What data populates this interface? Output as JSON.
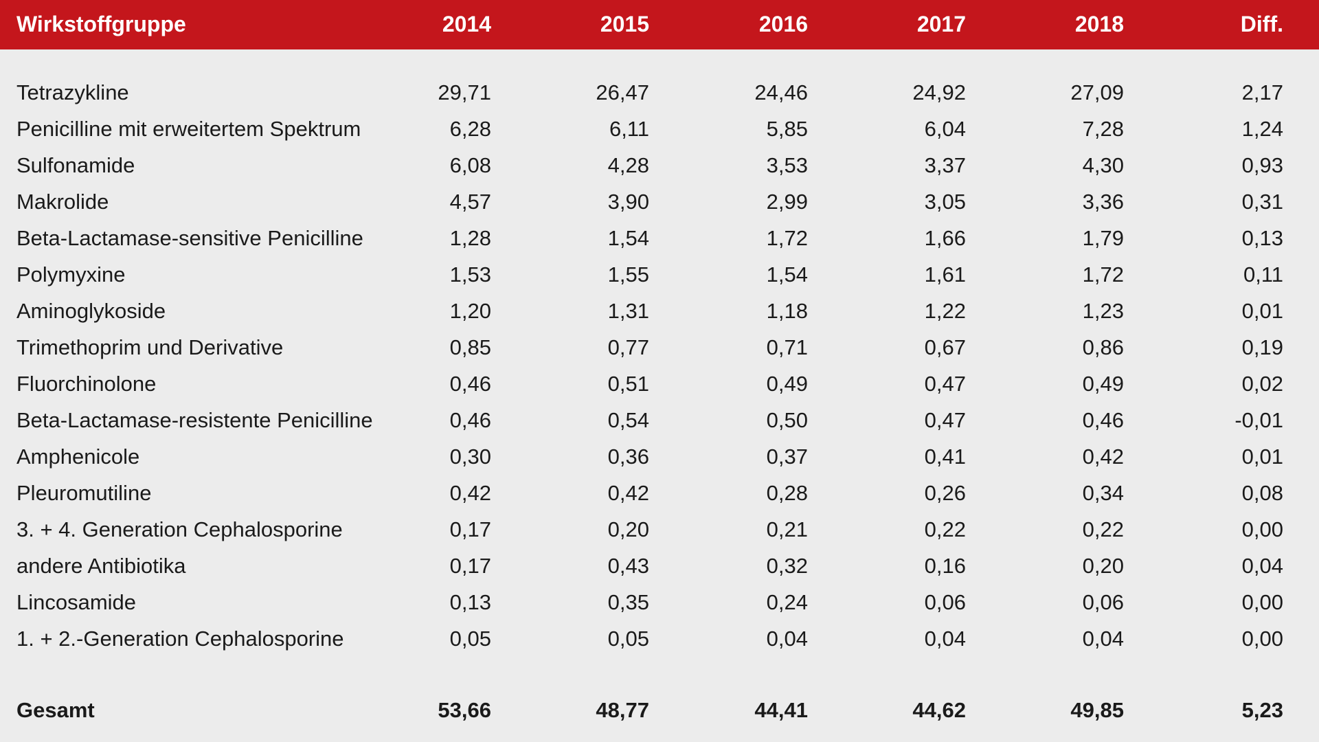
{
  "colors": {
    "header_bg": "#c4161c",
    "header_text": "#ffffff",
    "page_bg": "#ececec",
    "text": "#1a1a1a"
  },
  "header": {
    "group": "Wirkstoffgruppe",
    "y2014": "2014",
    "y2015": "2015",
    "y2016": "2016",
    "y2017": "2017",
    "y2018": "2018",
    "diff": "Diff."
  },
  "rows": [
    {
      "name": "Tetrazykline",
      "v2014": "29,71",
      "v2015": "26,47",
      "v2016": "24,46",
      "v2017": "24,92",
      "v2018": "27,09",
      "diff": "2,17"
    },
    {
      "name": "Penicilline mit erweitertem Spektrum",
      "v2014": "6,28",
      "v2015": "6,11",
      "v2016": "5,85",
      "v2017": "6,04",
      "v2018": "7,28",
      "diff": "1,24"
    },
    {
      "name": "Sulfonamide",
      "v2014": "6,08",
      "v2015": "4,28",
      "v2016": "3,53",
      "v2017": "3,37",
      "v2018": "4,30",
      "diff": "0,93"
    },
    {
      "name": "Makrolide",
      "v2014": "4,57",
      "v2015": "3,90",
      "v2016": "2,99",
      "v2017": "3,05",
      "v2018": "3,36",
      "diff": "0,31"
    },
    {
      "name": "Beta-Lactamase-sensitive Penicilline",
      "v2014": "1,28",
      "v2015": "1,54",
      "v2016": "1,72",
      "v2017": "1,66",
      "v2018": "1,79",
      "diff": "0,13"
    },
    {
      "name": "Polymyxine",
      "v2014": "1,53",
      "v2015": "1,55",
      "v2016": "1,54",
      "v2017": "1,61",
      "v2018": "1,72",
      "diff": "0,11"
    },
    {
      "name": "Aminoglykoside",
      "v2014": "1,20",
      "v2015": "1,31",
      "v2016": "1,18",
      "v2017": "1,22",
      "v2018": "1,23",
      "diff": "0,01"
    },
    {
      "name": "Trimethoprim und Derivative",
      "v2014": "0,85",
      "v2015": "0,77",
      "v2016": "0,71",
      "v2017": "0,67",
      "v2018": "0,86",
      "diff": "0,19"
    },
    {
      "name": "Fluorchinolone",
      "v2014": "0,46",
      "v2015": "0,51",
      "v2016": "0,49",
      "v2017": "0,47",
      "v2018": "0,49",
      "diff": "0,02"
    },
    {
      "name": "Beta-Lactamase-resistente Penicilline",
      "v2014": "0,46",
      "v2015": "0,54",
      "v2016": "0,50",
      "v2017": "0,47",
      "v2018": "0,46",
      "diff": "-0,01"
    },
    {
      "name": "Amphenicole",
      "v2014": "0,30",
      "v2015": "0,36",
      "v2016": "0,37",
      "v2017": "0,41",
      "v2018": "0,42",
      "diff": "0,01"
    },
    {
      "name": "Pleuromutiline",
      "v2014": "0,42",
      "v2015": "0,42",
      "v2016": "0,28",
      "v2017": "0,26",
      "v2018": "0,34",
      "diff": "0,08"
    },
    {
      "name": "3. + 4. Generation Cephalosporine",
      "v2014": "0,17",
      "v2015": "0,20",
      "v2016": "0,21",
      "v2017": "0,22",
      "v2018": "0,22",
      "diff": "0,00"
    },
    {
      "name": "andere Antibiotika",
      "v2014": "0,17",
      "v2015": "0,43",
      "v2016": "0,32",
      "v2017": "0,16",
      "v2018": "0,20",
      "diff": "0,04"
    },
    {
      "name": "Lincosamide",
      "v2014": "0,13",
      "v2015": "0,35",
      "v2016": "0,24",
      "v2017": "0,06",
      "v2018": "0,06",
      "diff": "0,00"
    },
    {
      "name": "1. + 2.-Generation Cephalosporine",
      "v2014": "0,05",
      "v2015": "0,05",
      "v2016": "0,04",
      "v2017": "0,04",
      "v2018": "0,04",
      "diff": "0,00"
    }
  ],
  "total": {
    "name": "Gesamt",
    "v2014": "53,66",
    "v2015": "48,77",
    "v2016": "44,41",
    "v2017": "44,62",
    "v2018": "49,85",
    "diff": "5,23"
  }
}
